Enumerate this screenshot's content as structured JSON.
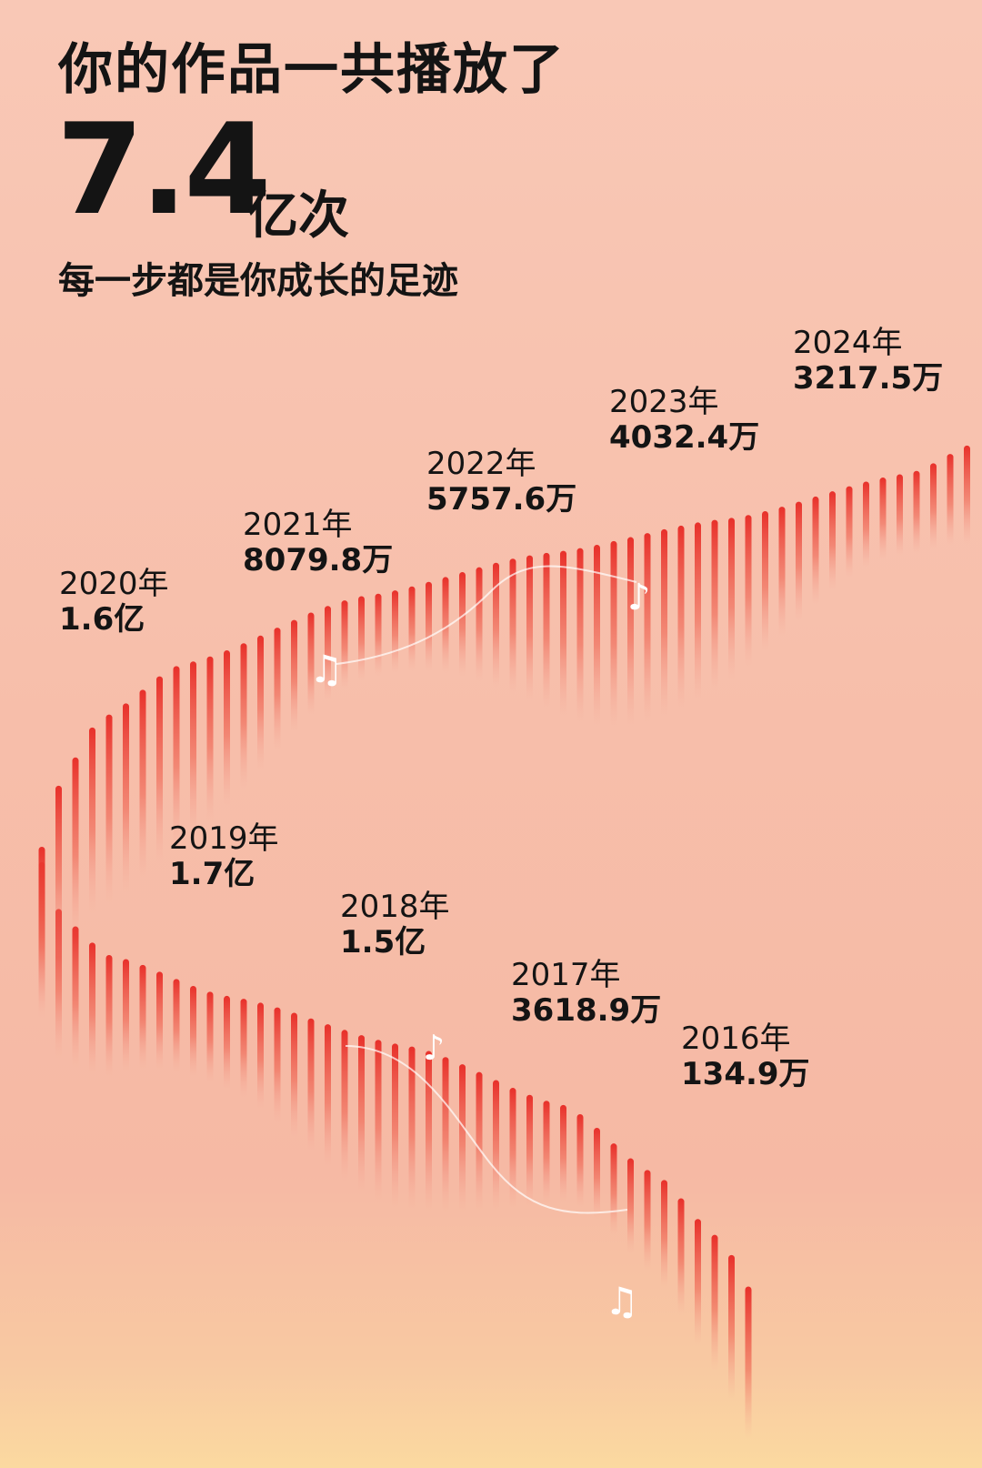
{
  "header": {
    "title": "你的作品一共播放了",
    "total": "7.4",
    "unit": "亿次",
    "subtitle": "每一步都是你成长的足迹"
  },
  "years": [
    {
      "year": "2024年",
      "plays": "3217.5万"
    },
    {
      "year": "2023年",
      "plays": "4032.4万"
    },
    {
      "year": "2022年",
      "plays": "5757.6万"
    },
    {
      "year": "2021年",
      "plays": "8079.8万"
    },
    {
      "year": "2020年",
      "plays": "1.6亿"
    },
    {
      "year": "2019年",
      "plays": "1.7亿"
    },
    {
      "year": "2018年",
      "plays": "1.5亿"
    },
    {
      "year": "2017年",
      "plays": "3618.9万"
    },
    {
      "year": "2016年",
      "plays": "134.9万"
    }
  ]
}
